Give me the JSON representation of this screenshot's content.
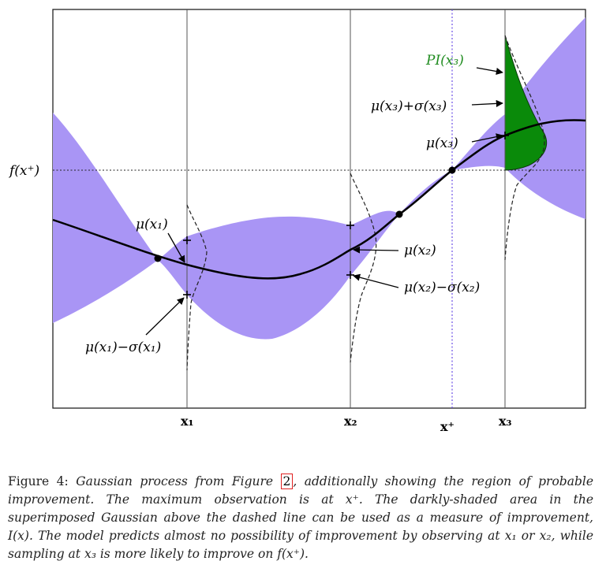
{
  "figure": {
    "axis_tick_labels": [
      "x₁",
      "x₂",
      "x⁺",
      "x₃"
    ],
    "y_label": "f(x⁺)",
    "annotations": {
      "mu_x1": "μ(x₁)",
      "mu_minus_sigma_x1": "μ(x₁)−σ(x₁)",
      "mu_x2": "μ(x₂)",
      "mu_minus_sigma_x2": "μ(x₂)−σ(x₂)",
      "mu_x3": "μ(x₃)",
      "mu_plus_sigma_x3": "μ(x₃)+σ(x₃)",
      "pi_x3": "PI(x₃)"
    },
    "colors": {
      "uncertainty_band": "#a995f5",
      "improvement_area": "#0a8a0a",
      "x_plus_line": "#6a4ee6",
      "mean_curve": "#000000"
    }
  },
  "caption": {
    "lead": "Figure 4:",
    "text_1": " Gaussian process from Figure ",
    "ref": "2",
    "text_2": ", additionally showing the region of probable improvement. The maximum observation is at x⁺. The darkly-shaded area in the superimposed Gaussian above the dashed line can be used as a measure of improvement, I(x). The model predicts almost no possibility of improvement by observing at x₁ or x₂, while sampling at x₃ is more likely to improve on f(x⁺)."
  }
}
